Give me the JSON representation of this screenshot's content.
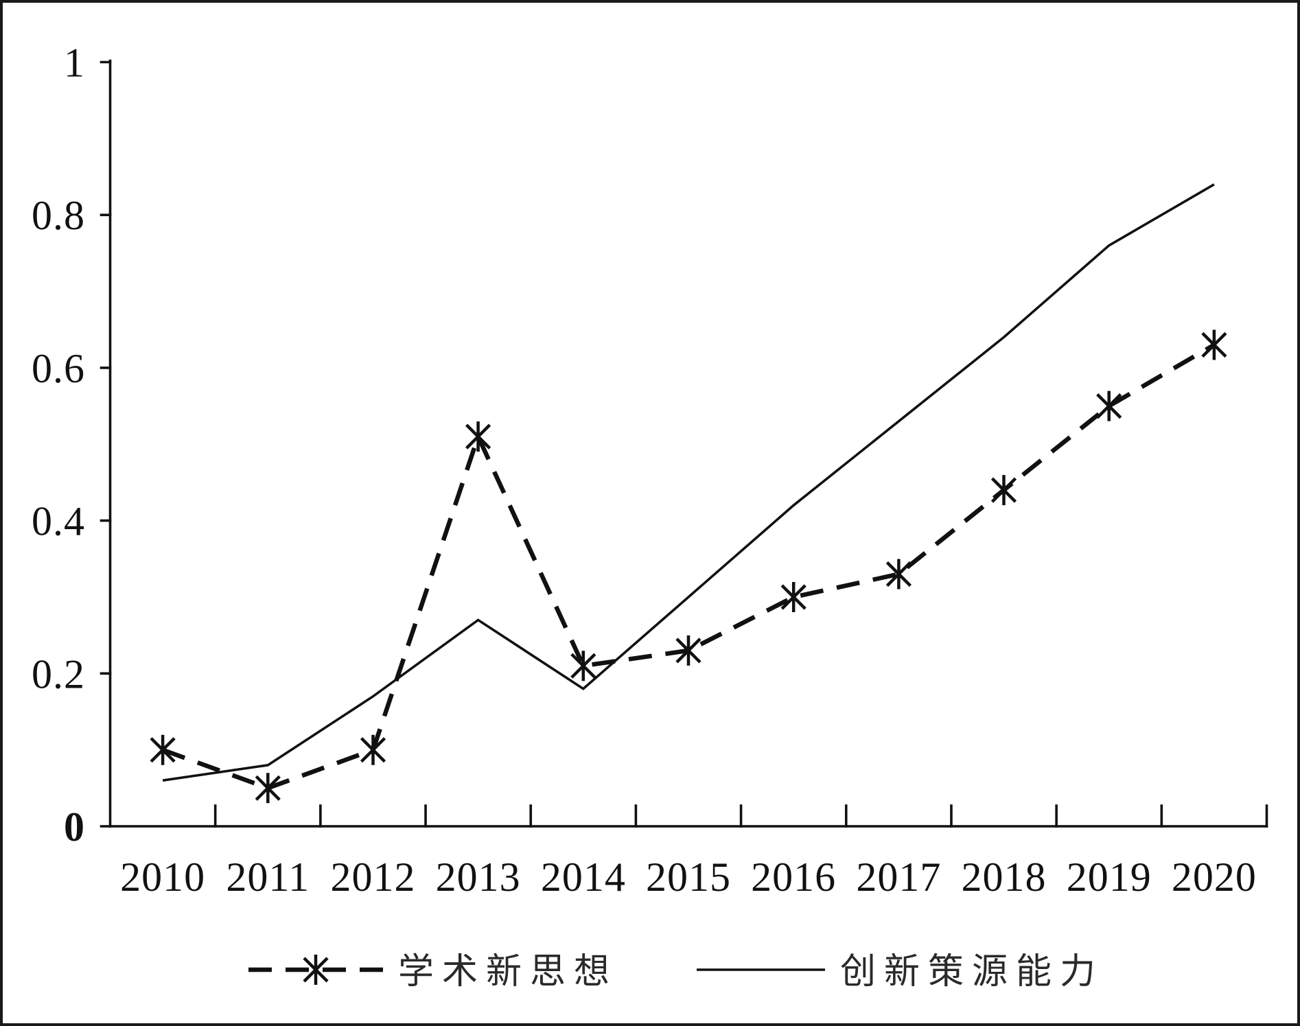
{
  "chart_data": {
    "type": "line",
    "categories": [
      "2010",
      "2011",
      "2012",
      "2013",
      "2014",
      "2015",
      "2016",
      "2017",
      "2018",
      "2019",
      "2020"
    ],
    "series": [
      {
        "name": "学术新思想",
        "values": [
          0.1,
          0.05,
          0.1,
          0.51,
          0.21,
          0.23,
          0.3,
          0.33,
          0.44,
          0.55,
          0.63
        ],
        "color": "#111111",
        "dashed": true,
        "markers": true
      },
      {
        "name": "创新策源能力",
        "values": [
          0.06,
          0.08,
          0.17,
          0.27,
          0.18,
          0.3,
          0.42,
          0.53,
          0.64,
          0.76,
          0.84
        ],
        "color": "#111111",
        "dashed": false,
        "markers": false
      }
    ],
    "ylim": [
      0,
      1
    ],
    "yticks": [
      0,
      0.2,
      0.4,
      0.6,
      0.8,
      1
    ],
    "ytick_labels": [
      "0",
      "0.2",
      "0.4",
      "0.6",
      "0.8",
      "1"
    ],
    "grid": false,
    "legend": "bottom"
  }
}
